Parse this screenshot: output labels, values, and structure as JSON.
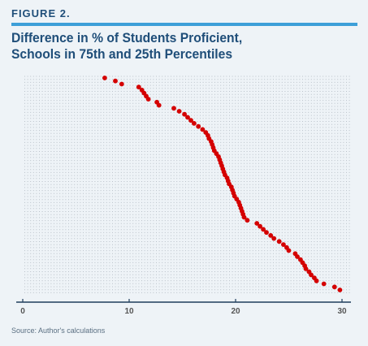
{
  "figure_label": "FIGURE 2.",
  "title_lines": [
    "Difference in % of Students Proficient,",
    "Schools in 75th and 25th Percentiles"
  ],
  "source": "Source: Author's calculations",
  "colors": {
    "accent_rule": "#3d9fd8",
    "title": "#1f4e79",
    "points": "#d40000",
    "grid": "#b9c1c9",
    "axis": "#1f3d5c"
  },
  "chart_data": {
    "type": "scatter",
    "title": "Difference in % of Students Proficient, Schools in 75th and 25th Percentiles",
    "xlabel": "",
    "ylabel": "",
    "xlim": [
      0,
      30.5
    ],
    "x_ticks": [
      0,
      10,
      20,
      30
    ],
    "x_tick_labels": [
      "0",
      "10",
      "20",
      "30"
    ],
    "grid": "dotted",
    "y_rank_count": 71,
    "values": [
      7.7,
      8.7,
      9.3,
      10.9,
      11.2,
      11.4,
      11.6,
      11.8,
      12.6,
      12.8,
      14.2,
      14.7,
      15.2,
      15.5,
      15.8,
      16.1,
      16.5,
      16.9,
      17.2,
      17.4,
      17.5,
      17.7,
      17.8,
      17.9,
      18.0,
      18.2,
      18.4,
      18.5,
      18.6,
      18.7,
      18.8,
      18.9,
      19.0,
      19.2,
      19.3,
      19.4,
      19.6,
      19.7,
      19.8,
      19.9,
      20.1,
      20.3,
      20.4,
      20.5,
      20.6,
      20.7,
      20.8,
      21.1,
      22.0,
      22.3,
      22.6,
      22.9,
      23.3,
      23.6,
      24.1,
      24.5,
      24.8,
      25.0,
      25.6,
      25.8,
      26.1,
      26.3,
      26.5,
      26.6,
      26.9,
      27.1,
      27.4,
      27.6,
      28.3,
      29.3,
      29.8
    ]
  }
}
